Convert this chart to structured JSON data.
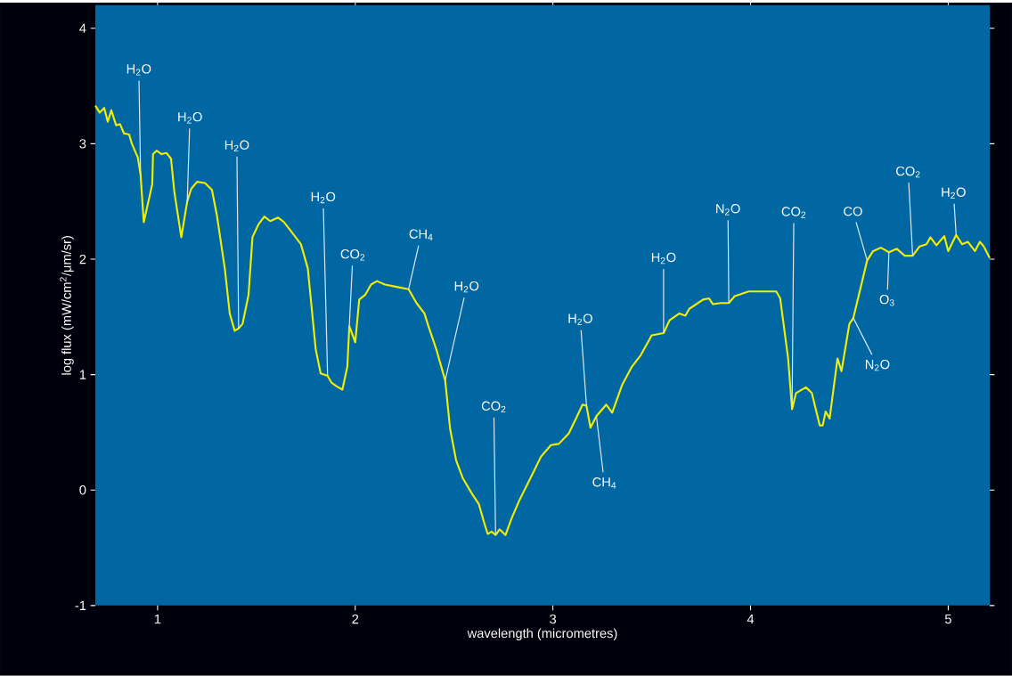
{
  "chart_data": {
    "type": "line",
    "xlabel": "wavelength (micrometres)",
    "ylabel": "log flux (mW/cm$^{2}$/μm/sr)",
    "xlim": [
      0.685,
      5.21
    ],
    "ylim": [
      -1,
      4.2
    ],
    "xticks": [
      1,
      2,
      3,
      4,
      5
    ],
    "yticks": [
      -1,
      0,
      1,
      2,
      3,
      4
    ],
    "grid": false,
    "marker": "none",
    "line_style": "solid",
    "series": [
      {
        "color": "#f2ee00",
        "x": [
          0.685,
          0.707,
          0.73,
          0.748,
          0.766,
          0.79,
          0.81,
          0.83,
          0.856,
          0.87,
          0.9,
          0.914,
          0.93,
          0.96,
          0.973,
          0.977,
          0.995,
          1.02,
          1.045,
          1.068,
          1.085,
          1.12,
          1.15,
          1.17,
          1.2,
          1.24,
          1.275,
          1.3,
          1.34,
          1.365,
          1.39,
          1.41,
          1.43,
          1.46,
          1.48,
          1.51,
          1.54,
          1.57,
          1.61,
          1.64,
          1.69,
          1.725,
          1.76,
          1.8,
          1.825,
          1.86,
          1.88,
          1.905,
          1.935,
          1.96,
          1.97,
          2.0,
          2.02,
          2.05,
          2.08,
          2.11,
          2.15,
          2.21,
          2.27,
          2.31,
          2.35,
          2.37,
          2.41,
          2.455,
          2.48,
          2.51,
          2.545,
          2.59,
          2.625,
          2.65,
          2.67,
          2.69,
          2.71,
          2.73,
          2.76,
          2.79,
          2.83,
          2.9,
          2.94,
          2.99,
          3.03,
          3.08,
          3.12,
          3.15,
          3.17,
          3.19,
          3.22,
          3.25,
          3.27,
          3.3,
          3.35,
          3.4,
          3.445,
          3.5,
          3.56,
          3.59,
          3.64,
          3.67,
          3.69,
          3.76,
          3.79,
          3.81,
          3.85,
          3.89,
          3.92,
          3.99,
          4.07,
          4.13,
          4.15,
          4.19,
          4.21,
          4.23,
          4.28,
          4.31,
          4.35,
          4.365,
          4.38,
          4.4,
          4.44,
          4.46,
          4.5,
          4.52,
          4.59,
          4.62,
          4.66,
          4.7,
          4.74,
          4.78,
          4.82,
          4.855,
          4.89,
          4.91,
          4.94,
          4.98,
          5.0,
          5.04,
          5.07,
          5.1,
          5.135,
          5.16,
          5.18,
          5.21
        ],
        "values": [
          3.33,
          3.27,
          3.31,
          3.19,
          3.29,
          3.16,
          3.17,
          3.09,
          3.08,
          3.0,
          2.88,
          2.73,
          2.32,
          2.55,
          2.65,
          2.91,
          2.94,
          2.91,
          2.92,
          2.87,
          2.58,
          2.19,
          2.5,
          2.61,
          2.67,
          2.66,
          2.6,
          2.38,
          1.92,
          1.53,
          1.38,
          1.4,
          1.44,
          1.69,
          2.19,
          2.3,
          2.37,
          2.33,
          2.36,
          2.32,
          2.21,
          2.13,
          1.92,
          1.22,
          1.01,
          0.99,
          0.93,
          0.9,
          0.87,
          1.07,
          1.42,
          1.28,
          1.65,
          1.69,
          1.78,
          1.81,
          1.78,
          1.76,
          1.74,
          1.62,
          1.53,
          1.42,
          1.22,
          0.95,
          0.53,
          0.26,
          0.1,
          -0.03,
          -0.12,
          -0.27,
          -0.38,
          -0.36,
          -0.39,
          -0.34,
          -0.39,
          -0.25,
          -0.09,
          0.15,
          0.29,
          0.39,
          0.4,
          0.49,
          0.63,
          0.74,
          0.73,
          0.54,
          0.64,
          0.7,
          0.74,
          0.67,
          0.91,
          1.07,
          1.17,
          1.34,
          1.36,
          1.47,
          1.53,
          1.51,
          1.57,
          1.65,
          1.66,
          1.61,
          1.62,
          1.62,
          1.68,
          1.72,
          1.72,
          1.72,
          1.66,
          1.14,
          0.7,
          0.84,
          0.89,
          0.84,
          0.56,
          0.56,
          0.68,
          0.62,
          1.14,
          1.03,
          1.44,
          1.49,
          1.99,
          2.07,
          2.1,
          2.06,
          2.09,
          2.03,
          2.03,
          2.11,
          2.13,
          2.19,
          2.12,
          2.2,
          2.07,
          2.21,
          2.13,
          2.15,
          2.07,
          2.15,
          2.11,
          2.01
        ]
      }
    ],
    "annotations": [
      {
        "text": "H$_{2}$O",
        "x": 0.914,
        "y": 2.73
      },
      {
        "text": "H$_{2}$O",
        "x": 1.15,
        "y": 2.5
      },
      {
        "text": "H$_{2}$O",
        "x": 1.41,
        "y": 1.4
      },
      {
        "text": "H$_{2}$O",
        "x": 1.86,
        "y": 0.99
      },
      {
        "text": "CO$_{2}$",
        "x": 1.97,
        "y": 1.42
      },
      {
        "text": "CH$_{4}$",
        "x": 2.27,
        "y": 1.74
      },
      {
        "text": "H$_{2}$O",
        "x": 2.455,
        "y": 0.95
      },
      {
        "text": "CO$_{2}$",
        "x": 2.71,
        "y": -0.39
      },
      {
        "text": "H$_{2}$O",
        "x": 3.17,
        "y": 0.73
      },
      {
        "text": "CH$_{4}$",
        "x": 3.22,
        "y": 0.64
      },
      {
        "text": "H$_{2}$O",
        "x": 3.56,
        "y": 1.36
      },
      {
        "text": "N$_{2}$O",
        "x": 3.89,
        "y": 1.62
      },
      {
        "text": "CO$_{2}$",
        "x": 4.21,
        "y": 0.7
      },
      {
        "text": "CO",
        "x": 4.59,
        "y": 1.99
      },
      {
        "text": "O$_{3}$",
        "x": 4.7,
        "y": 2.06
      },
      {
        "text": "N$_{2}$O",
        "x": 4.52,
        "y": 1.49
      },
      {
        "text": "CO$_{2}$",
        "x": 4.82,
        "y": 2.03
      },
      {
        "text": "H$_{2}$O",
        "x": 5.04,
        "y": 2.21
      }
    ]
  }
}
